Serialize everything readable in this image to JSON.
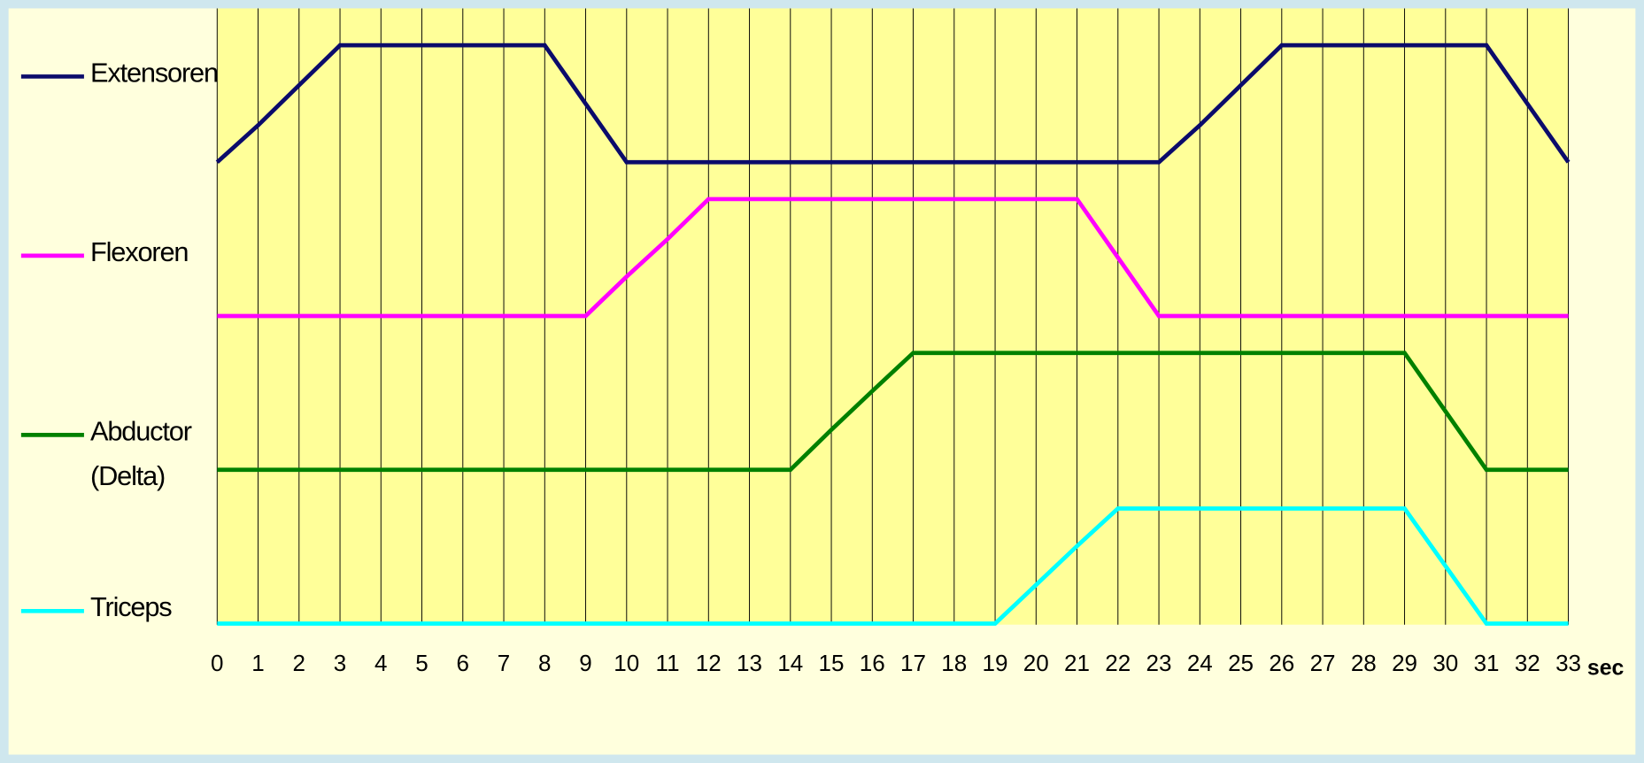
{
  "chart_data": {
    "type": "line",
    "x_label": "sec",
    "x": [
      0,
      1,
      2,
      3,
      4,
      5,
      6,
      7,
      8,
      9,
      10,
      11,
      12,
      13,
      14,
      15,
      16,
      17,
      18,
      19,
      20,
      21,
      22,
      23,
      24,
      25,
      26,
      27,
      28,
      29,
      30,
      31,
      32,
      33
    ],
    "xlim": [
      0,
      33
    ],
    "xticks": [
      0,
      1,
      2,
      3,
      4,
      5,
      6,
      7,
      8,
      9,
      10,
      11,
      12,
      13,
      14,
      15,
      16,
      17,
      18,
      19,
      20,
      21,
      22,
      23,
      24,
      25,
      26,
      27,
      28,
      29,
      30,
      31,
      32,
      33
    ],
    "ylim": [
      0,
      100
    ],
    "grid": true,
    "series": [
      {
        "name": "Extensoren",
        "color": "#0b0b6b",
        "values": [
          75,
          81,
          87.5,
          94,
          94,
          94,
          94,
          94,
          94,
          84.5,
          75,
          75,
          75,
          75,
          75,
          75,
          75,
          75,
          75,
          75,
          75,
          75,
          75,
          75,
          81,
          87.5,
          94,
          94,
          94,
          94,
          94,
          94,
          84.5,
          75
        ]
      },
      {
        "name": "Flexoren",
        "color": "#ff00ff",
        "values": [
          50,
          50,
          50,
          50,
          50,
          50,
          50,
          50,
          50,
          50,
          56.4,
          62.5,
          69,
          69,
          69,
          69,
          69,
          69,
          69,
          69,
          69,
          69,
          59.5,
          50,
          50,
          50,
          50,
          50,
          50,
          50,
          50,
          50,
          50,
          50
        ]
      },
      {
        "name": "Abductor (Delta)",
        "color": "#008000",
        "values": [
          25,
          25,
          25,
          25,
          25,
          25,
          25,
          25,
          25,
          25,
          25,
          25,
          25,
          25,
          25,
          31.5,
          37.8,
          44,
          44,
          44,
          44,
          44,
          44,
          44,
          44,
          44,
          44,
          44,
          44,
          44,
          34.5,
          25,
          25,
          25
        ]
      },
      {
        "name": "Triceps",
        "color": "#00ffff",
        "values": [
          0,
          0,
          0,
          0,
          0,
          0,
          0,
          0,
          0,
          0,
          0,
          0,
          0,
          0,
          0,
          0,
          0,
          0,
          0,
          0,
          6.3,
          12.6,
          18.7,
          18.7,
          18.7,
          18.7,
          18.7,
          18.7,
          18.7,
          18.7,
          9.35,
          0,
          0,
          0
        ]
      }
    ]
  }
}
